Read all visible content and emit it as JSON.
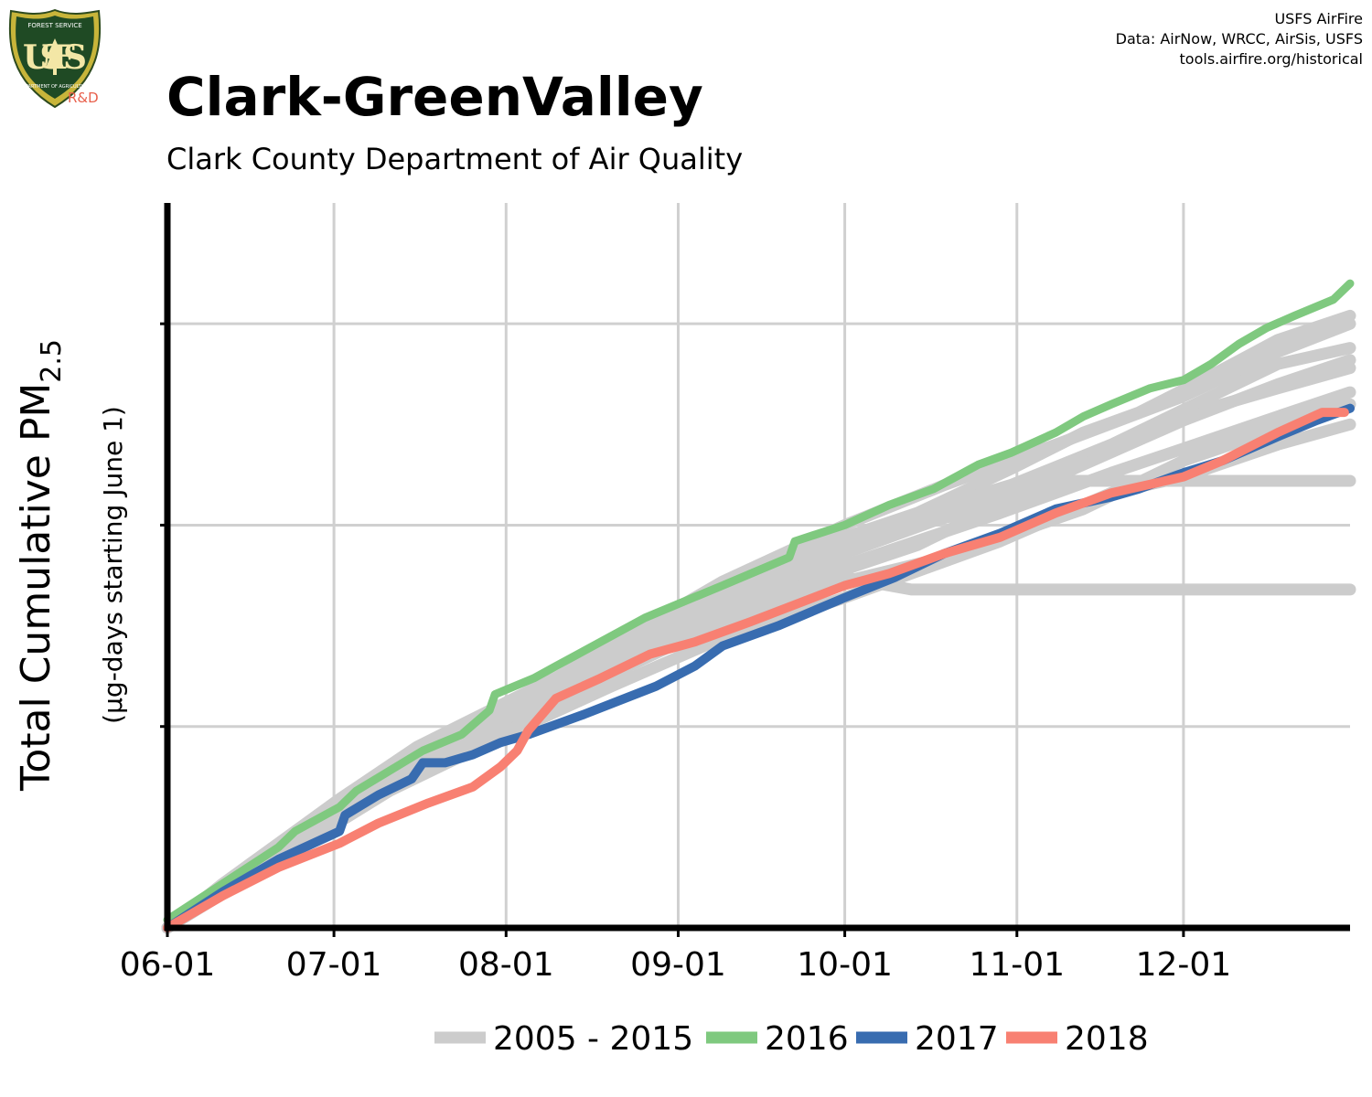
{
  "header": {
    "agency_logo": {
      "icon": "usda-forest-service-shield-icon",
      "text_top": "FOREST SERVICE",
      "letters": "USFS",
      "text_bottom": "DEPARTMENT OF AGRICULTURE",
      "tag": "R&D"
    },
    "credits": [
      "USFS AirFire",
      "Data: AirNow, WRCC, AirSis, USFS",
      "tools.airfire.org/historical"
    ],
    "title": "Clark-GreenValley",
    "subtitle": "Clark County Department of Air Quality"
  },
  "chart_data": {
    "type": "line",
    "title": "Clark-GreenValley",
    "subtitle": "Clark County Department of Air Quality",
    "ylabel": "Total Cumulative PM2.5",
    "ylabel_main": "Total Cumulative PM",
    "ylabel_sub": "2.5",
    "ylabel_note": "(µg-days starting June 1)",
    "xlim": [
      0,
      213
    ],
    "ylim": [
      0,
      1800
    ],
    "ytick_values": [
      0,
      500,
      1000,
      1500
    ],
    "show_ytick_labels": false,
    "grid": true,
    "legend_position": "bottom",
    "x_ticks": [
      {
        "day": 0,
        "label": "06-01"
      },
      {
        "day": 30,
        "label": "07-01"
      },
      {
        "day": 61,
        "label": "08-01"
      },
      {
        "day": 92,
        "label": "09-01"
      },
      {
        "day": 122,
        "label": "10-01"
      },
      {
        "day": 153,
        "label": "11-01"
      },
      {
        "day": 183,
        "label": "12-01"
      }
    ],
    "series": [
      {
        "name": "2005 - 2015",
        "color": "#cccccc",
        "width": 13,
        "legend": true,
        "points": [
          [
            0,
            0
          ],
          [
            10,
            110
          ],
          [
            20,
            210
          ],
          [
            31,
            320
          ],
          [
            45,
            450
          ],
          [
            61,
            560
          ],
          [
            80,
            690
          ],
          [
            100,
            830
          ],
          [
            122,
            970
          ],
          [
            135,
            1030
          ],
          [
            152,
            1140
          ],
          [
            165,
            1230
          ],
          [
            175,
            1280
          ],
          [
            185,
            1350
          ],
          [
            200,
            1460
          ],
          [
            213,
            1520
          ]
        ]
      },
      {
        "name": "2005 - 2015",
        "color": "#cccccc",
        "width": 13,
        "legend": false,
        "points": [
          [
            0,
            0
          ],
          [
            15,
            150
          ],
          [
            31,
            290
          ],
          [
            50,
            430
          ],
          [
            61,
            510
          ],
          [
            80,
            630
          ],
          [
            100,
            760
          ],
          [
            122,
            890
          ],
          [
            135,
            950
          ],
          [
            150,
            1050
          ],
          [
            165,
            1160
          ],
          [
            180,
            1260
          ],
          [
            200,
            1340
          ],
          [
            213,
            1390
          ]
        ]
      },
      {
        "name": "2005 - 2015",
        "color": "#cccccc",
        "width": 13,
        "legend": false,
        "points": [
          [
            0,
            0
          ],
          [
            15,
            150
          ],
          [
            31,
            300
          ],
          [
            50,
            440
          ],
          [
            61,
            530
          ],
          [
            80,
            660
          ],
          [
            100,
            800
          ],
          [
            122,
            940
          ],
          [
            135,
            1000
          ],
          [
            152,
            1060
          ],
          [
            160,
            1110
          ],
          [
            185,
            1110
          ],
          [
            213,
            1110
          ]
        ]
      },
      {
        "name": "2005 - 2015",
        "color": "#cccccc",
        "width": 13,
        "legend": false,
        "points": [
          [
            0,
            0
          ],
          [
            15,
            150
          ],
          [
            31,
            300
          ],
          [
            50,
            440
          ],
          [
            61,
            520
          ],
          [
            80,
            640
          ],
          [
            100,
            770
          ],
          [
            122,
            870
          ],
          [
            134,
            840
          ],
          [
            150,
            840
          ],
          [
            213,
            840
          ]
        ]
      },
      {
        "name": "2005 - 2015",
        "color": "#cccccc",
        "width": 13,
        "legend": false,
        "points": [
          [
            0,
            0
          ],
          [
            20,
            190
          ],
          [
            40,
            380
          ],
          [
            61,
            550
          ],
          [
            80,
            700
          ],
          [
            100,
            860
          ],
          [
            122,
            1000
          ],
          [
            140,
            1100
          ],
          [
            160,
            1200
          ],
          [
            183,
            1320
          ],
          [
            200,
            1430
          ],
          [
            213,
            1500
          ]
        ]
      },
      {
        "name": "2005 - 2015",
        "color": "#cccccc",
        "width": 13,
        "legend": false,
        "points": [
          [
            0,
            0
          ],
          [
            20,
            180
          ],
          [
            40,
            360
          ],
          [
            61,
            520
          ],
          [
            80,
            650
          ],
          [
            100,
            780
          ],
          [
            122,
            900
          ],
          [
            150,
            1030
          ],
          [
            170,
            1130
          ],
          [
            183,
            1190
          ],
          [
            200,
            1270
          ],
          [
            213,
            1330
          ]
        ]
      },
      {
        "name": "2005 - 2015",
        "color": "#cccccc",
        "width": 13,
        "legend": false,
        "points": [
          [
            0,
            0
          ],
          [
            15,
            160
          ],
          [
            31,
            310
          ],
          [
            50,
            460
          ],
          [
            61,
            550
          ],
          [
            80,
            680
          ],
          [
            100,
            820
          ],
          [
            122,
            950
          ],
          [
            140,
            1050
          ],
          [
            152,
            1100
          ],
          [
            170,
            1200
          ],
          [
            185,
            1300
          ],
          [
            200,
            1400
          ],
          [
            213,
            1440
          ]
        ]
      },
      {
        "name": "2005 - 2015",
        "color": "#cccccc",
        "width": 13,
        "legend": false,
        "points": [
          [
            0,
            0
          ],
          [
            20,
            190
          ],
          [
            40,
            380
          ],
          [
            61,
            520
          ],
          [
            80,
            650
          ],
          [
            100,
            760
          ],
          [
            122,
            860
          ],
          [
            140,
            920
          ],
          [
            165,
            1040
          ],
          [
            183,
            1160
          ],
          [
            200,
            1240
          ],
          [
            213,
            1300
          ]
        ]
      },
      {
        "name": "2005 - 2015",
        "color": "#cccccc",
        "width": 13,
        "legend": false,
        "points": [
          [
            0,
            0
          ],
          [
            15,
            150
          ],
          [
            31,
            300
          ],
          [
            45,
            420
          ],
          [
            61,
            530
          ],
          [
            80,
            650
          ],
          [
            100,
            790
          ],
          [
            122,
            930
          ],
          [
            140,
            1020
          ],
          [
            160,
            1120
          ],
          [
            183,
            1260
          ],
          [
            200,
            1350
          ],
          [
            213,
            1410
          ]
        ]
      },
      {
        "name": "2005 - 2015",
        "color": "#cccccc",
        "width": 13,
        "legend": false,
        "points": [
          [
            0,
            0
          ],
          [
            20,
            170
          ],
          [
            40,
            340
          ],
          [
            61,
            480
          ],
          [
            80,
            600
          ],
          [
            100,
            720
          ],
          [
            122,
            820
          ],
          [
            150,
            960
          ],
          [
            170,
            1080
          ],
          [
            183,
            1120
          ],
          [
            200,
            1200
          ],
          [
            213,
            1250
          ]
        ]
      },
      {
        "name": "2016",
        "color": "#7fc97f",
        "width": 9,
        "legend": true,
        "points": [
          [
            0,
            20
          ],
          [
            10,
            110
          ],
          [
            20,
            200
          ],
          [
            23,
            240
          ],
          [
            31,
            300
          ],
          [
            34,
            340
          ],
          [
            46,
            440
          ],
          [
            53,
            480
          ],
          [
            58,
            540
          ],
          [
            59,
            580
          ],
          [
            66,
            620
          ],
          [
            70,
            650
          ],
          [
            86,
            770
          ],
          [
            93,
            810
          ],
          [
            100,
            850
          ],
          [
            112,
            920
          ],
          [
            113,
            960
          ],
          [
            122,
            1000
          ],
          [
            130,
            1050
          ],
          [
            138,
            1090
          ],
          [
            146,
            1150
          ],
          [
            152,
            1180
          ],
          [
            160,
            1230
          ],
          [
            165,
            1270
          ],
          [
            170,
            1300
          ],
          [
            177,
            1340
          ],
          [
            183,
            1360
          ],
          [
            188,
            1400
          ],
          [
            193,
            1450
          ],
          [
            198,
            1490
          ],
          [
            203,
            1520
          ],
          [
            210,
            1560
          ],
          [
            213,
            1600
          ]
        ]
      },
      {
        "name": "2017",
        "color": "#386cb0",
        "width": 10,
        "legend": true,
        "points": [
          [
            0,
            0
          ],
          [
            10,
            90
          ],
          [
            20,
            170
          ],
          [
            31,
            240
          ],
          [
            32,
            280
          ],
          [
            38,
            330
          ],
          [
            44,
            370
          ],
          [
            46,
            410
          ],
          [
            50,
            410
          ],
          [
            55,
            430
          ],
          [
            60,
            460
          ],
          [
            65,
            480
          ],
          [
            75,
            530
          ],
          [
            88,
            600
          ],
          [
            95,
            650
          ],
          [
            100,
            700
          ],
          [
            110,
            750
          ],
          [
            122,
            820
          ],
          [
            131,
            870
          ],
          [
            140,
            930
          ],
          [
            150,
            980
          ],
          [
            160,
            1040
          ],
          [
            170,
            1070
          ],
          [
            175,
            1090
          ],
          [
            183,
            1130
          ],
          [
            190,
            1160
          ],
          [
            200,
            1220
          ],
          [
            207,
            1260
          ],
          [
            213,
            1290
          ]
        ]
      },
      {
        "name": "2018",
        "color": "#f88072",
        "width": 10,
        "legend": true,
        "points": [
          [
            0,
            0
          ],
          [
            10,
            80
          ],
          [
            20,
            150
          ],
          [
            31,
            210
          ],
          [
            38,
            260
          ],
          [
            47,
            310
          ],
          [
            55,
            350
          ],
          [
            60,
            400
          ],
          [
            63,
            440
          ],
          [
            65,
            490
          ],
          [
            70,
            570
          ],
          [
            78,
            620
          ],
          [
            87,
            680
          ],
          [
            95,
            710
          ],
          [
            105,
            760
          ],
          [
            122,
            850
          ],
          [
            130,
            880
          ],
          [
            140,
            930
          ],
          [
            150,
            970
          ],
          [
            160,
            1030
          ],
          [
            170,
            1080
          ],
          [
            183,
            1120
          ],
          [
            190,
            1160
          ],
          [
            200,
            1230
          ],
          [
            208,
            1280
          ],
          [
            212,
            1280
          ]
        ]
      }
    ]
  }
}
